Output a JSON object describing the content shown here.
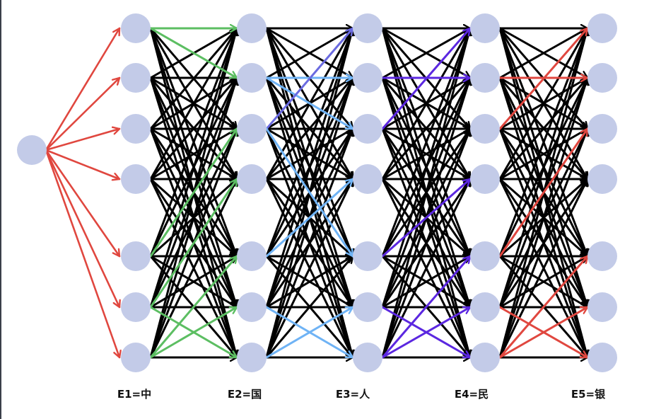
{
  "colors": {
    "node": "#c3cbe8",
    "default_edge": "#000000",
    "start_edges": "#e0473f",
    "transition_1_highlight": "#5cbe62",
    "transition_2_highlight": "#6fb3f5",
    "transition_2_accent": "#6a6ae0",
    "transition_3_highlight": "#5b27e0",
    "transition_4_highlight": "#e0473f"
  },
  "columns": [
    {
      "label": "E1=中"
    },
    {
      "label": "E2=国"
    },
    {
      "label": "E3=人"
    },
    {
      "label": "E4=民"
    },
    {
      "label": "E5=银"
    }
  ],
  "nodes_per_column": 7,
  "transitions": [
    {
      "highlight_color_key": "transition_1_highlight",
      "highlights": [
        [
          0,
          0
        ],
        [
          0,
          1
        ],
        [
          4,
          2
        ],
        [
          5,
          3
        ],
        [
          5,
          6
        ],
        [
          6,
          5
        ],
        [
          6,
          4
        ]
      ]
    },
    {
      "highlight_color_key": "transition_2_highlight",
      "highlights": [
        [
          1,
          1
        ],
        [
          1,
          2
        ],
        [
          2,
          4
        ],
        [
          4,
          3
        ],
        [
          5,
          6
        ],
        [
          6,
          5
        ]
      ],
      "accent": [
        [
          2,
          0
        ]
      ],
      "accent_color_key": "transition_2_accent"
    },
    {
      "highlight_color_key": "transition_3_highlight",
      "highlights": [
        [
          1,
          1
        ],
        [
          2,
          0
        ],
        [
          4,
          3
        ],
        [
          5,
          6
        ],
        [
          6,
          4
        ],
        [
          6,
          5
        ]
      ]
    },
    {
      "highlight_color_key": "transition_4_highlight",
      "highlights": [
        [
          1,
          1
        ],
        [
          2,
          0
        ],
        [
          4,
          2
        ],
        [
          5,
          6
        ],
        [
          6,
          5
        ],
        [
          6,
          4
        ]
      ]
    }
  ]
}
